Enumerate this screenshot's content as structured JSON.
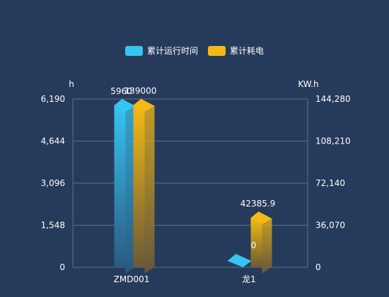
{
  "chart_data": {
    "type": "bar",
    "categories": [
      "ZMD001",
      "龙1"
    ],
    "series": [
      {
        "name": "累计运行时间",
        "axis": "left",
        "values": [
          5960,
          0
        ],
        "labels": [
          "5960",
          ""
        ],
        "gradient": [
          "#36c5f0",
          "#2a5a83"
        ]
      },
      {
        "name": "累计耗电",
        "axis": "right",
        "values": [
          139000,
          42385.9
        ],
        "labels": [
          "139000",
          "42385.9"
        ],
        "gradient": [
          "#f5b915",
          "#6b5a36"
        ]
      }
    ],
    "left_axis": {
      "name": "h",
      "min": 0,
      "max": 6190,
      "ticks": [
        "0",
        "1,548",
        "3,096",
        "4,644",
        "6,190"
      ]
    },
    "right_axis": {
      "name": "KW.h",
      "min": 0,
      "max": 144280,
      "ticks": [
        "0",
        "36,070",
        "72,140",
        "108,210",
        "144,280"
      ]
    },
    "zero_label": "0",
    "legend": {
      "position": "top-center"
    },
    "grid": true
  }
}
